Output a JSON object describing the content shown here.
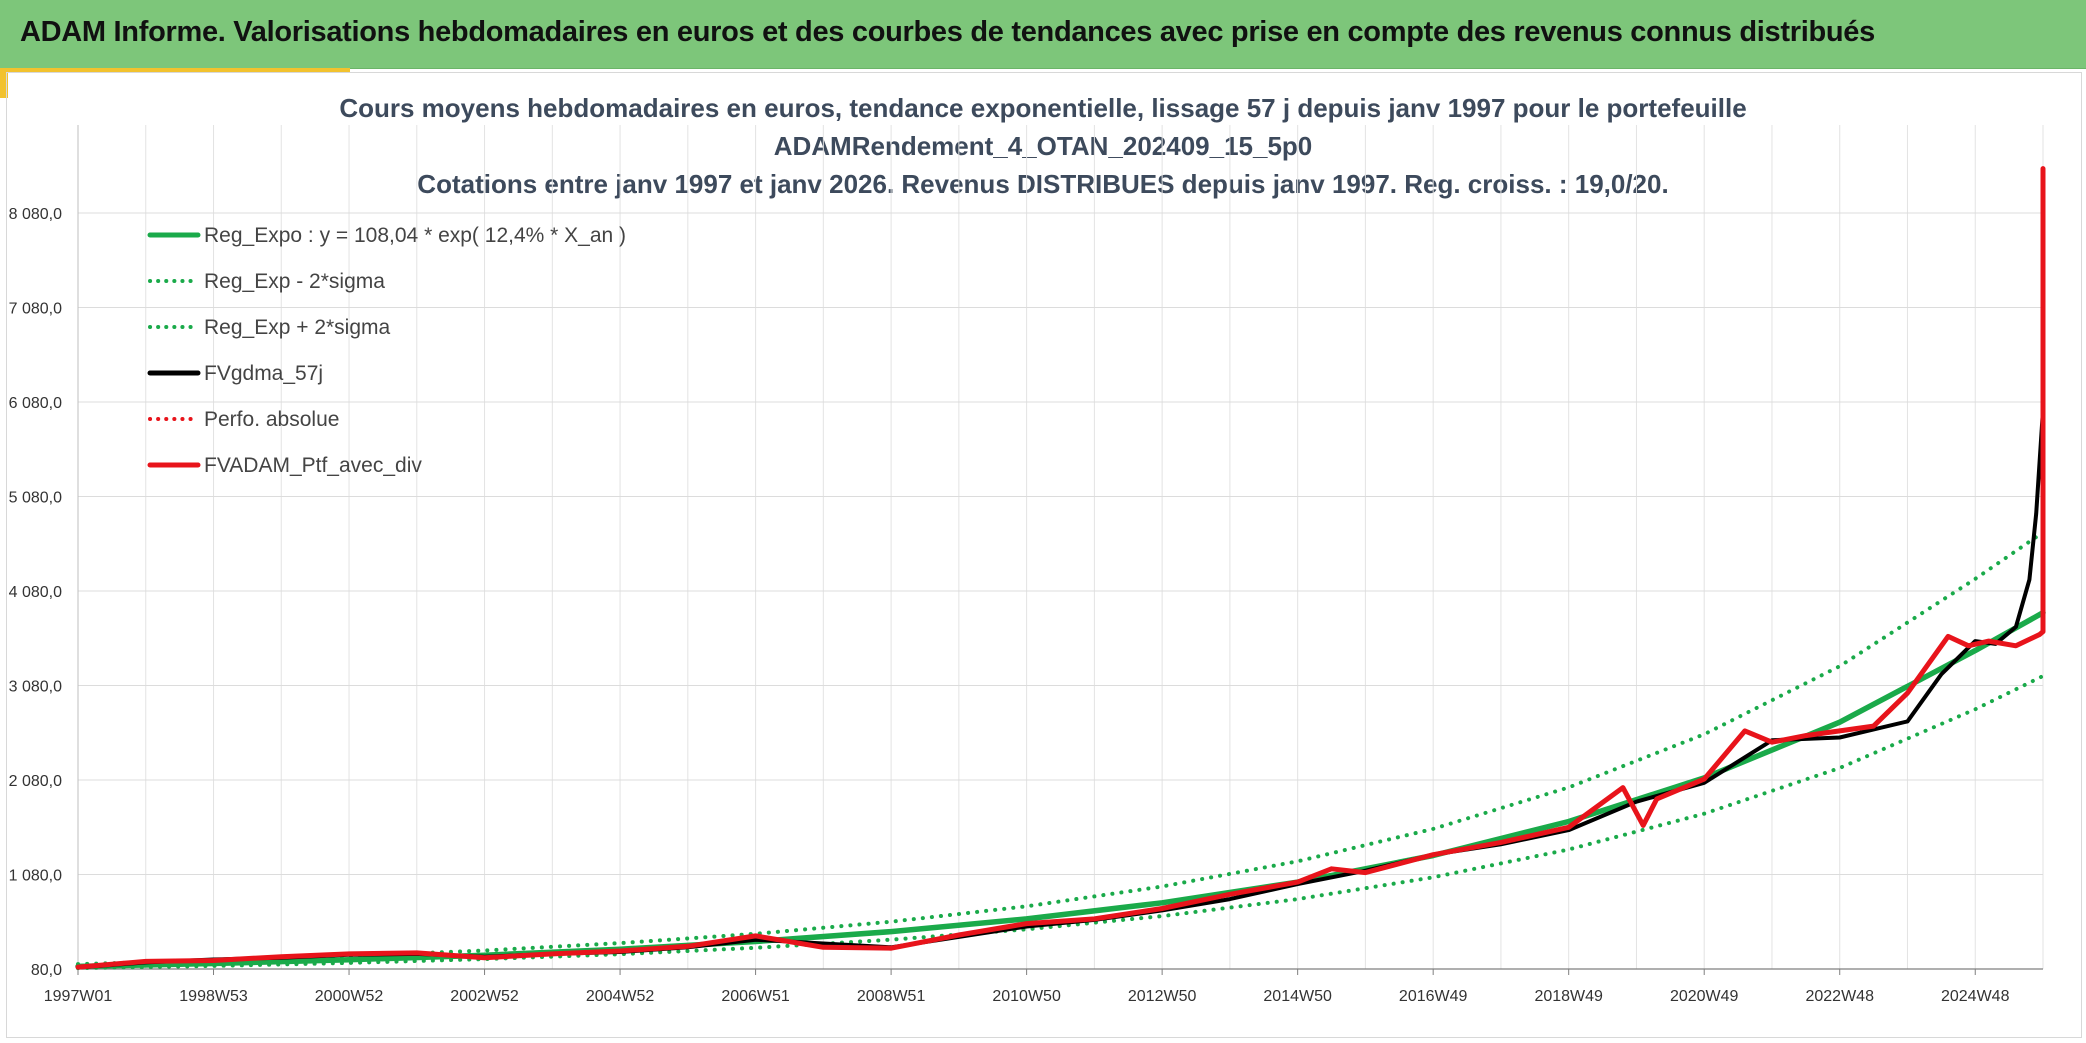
{
  "header": {
    "title": "ADAM Informe. Valorisations hebdomadaires en euros et des courbes de tendances avec prise en compte des revenus connus distribués"
  },
  "colors": {
    "header_bg": "#7dc67a",
    "regression": "#1aaa4a",
    "fvgdma": "#000000",
    "portfolio": "#e8141b",
    "perfo": "#e8141b"
  },
  "chart_data": {
    "type": "line",
    "title_lines": [
      "Cours moyens hebdomadaires en euros, tendance exponentielle, lissage 57 j depuis janv 1997 pour le portefeuille",
      "ADAMRendement_4_OTAN_202409_15_5p0",
      "Cotations entre janv 1997 et janv 2026. Revenus DISTRIBUES depuis janv 1997. Reg. croiss. : 19,0/20."
    ],
    "xlabel": "",
    "ylabel": "",
    "x_tick_labels": [
      "1997W01",
      "1998W53",
      "2000W52",
      "2002W52",
      "2004W52",
      "2006W51",
      "2008W51",
      "2010W50",
      "2012W50",
      "2014W50",
      "2016W49",
      "2018W49",
      "2020W49",
      "2022W48",
      "2024W48"
    ],
    "x_ticks_years": [
      1997.0,
      1999.0,
      2001.0,
      2003.0,
      2005.0,
      2007.0,
      2009.0,
      2011.0,
      2013.0,
      2015.0,
      2017.0,
      2019.0,
      2021.0,
      2023.0,
      2025.0
    ],
    "xlim": [
      1997.0,
      2026.0
    ],
    "y_tick_values": [
      80,
      1080,
      2080,
      3080,
      4080,
      5080,
      6080,
      7080,
      8080
    ],
    "y_tick_labels": [
      "80,0",
      "1 080,0",
      "2 080,0",
      "3 080,0",
      "4 080,0",
      "5 080,0",
      "6 080,0",
      "7 080,0",
      "8 080,0"
    ],
    "ylim": [
      80,
      9000
    ],
    "grid": true,
    "legend_position": "top-left",
    "series": [
      {
        "name": "Reg_Expo : y = 108,04 * exp( 12,4% *  X_an )",
        "style": "solid",
        "color": "#1aaa4a",
        "x": [
          1997,
          1999,
          2001,
          2003,
          2005,
          2007,
          2009,
          2011,
          2013,
          2015,
          2017,
          2019,
          2021,
          2023,
          2025,
          2026
        ],
        "values": [
          108,
          138,
          177,
          226,
          290,
          371,
          476,
          610,
          781,
          1000,
          1281,
          1641,
          2102,
          2692,
          3449,
          3850
        ]
      },
      {
        "name": "Reg_Exp - 2*sigma",
        "style": "dotted",
        "color": "#1aaa4a",
        "x": [
          1997,
          1999,
          2001,
          2003,
          2005,
          2007,
          2009,
          2011,
          2013,
          2015,
          2017,
          2019,
          2021,
          2023,
          2025,
          2026
        ],
        "values": [
          89,
          113,
          145,
          185,
          237,
          304,
          390,
          500,
          640,
          820,
          1050,
          1345,
          1723,
          2207,
          2828,
          3180
        ]
      },
      {
        "name": "Reg_Exp + 2*sigma",
        "style": "dotted",
        "color": "#1aaa4a",
        "x": [
          1997,
          1999,
          2001,
          2003,
          2005,
          2007,
          2009,
          2011,
          2013,
          2015,
          2017,
          2019,
          2021,
          2023,
          2025,
          2026
        ],
        "values": [
          132,
          169,
          216,
          276,
          354,
          453,
          581,
          744,
          953,
          1220,
          1563,
          2002,
          2564,
          3284,
          4208,
          4700
        ]
      },
      {
        "name": "FVgdma_57j",
        "style": "solid",
        "color": "#000000",
        "x": [
          1997,
          1998,
          1999,
          2000,
          2001,
          2002,
          2003,
          2004,
          2005,
          2006,
          2007,
          2008,
          2009,
          2010,
          2011,
          2012,
          2013,
          2014,
          2015,
          2016,
          2017,
          2018,
          2019,
          2020,
          2021,
          2022,
          2023,
          2024,
          2024.5,
          2025,
          2025.3,
          2025.6,
          2025.8,
          2025.9,
          2026
        ],
        "values": [
          95,
          150,
          180,
          200,
          230,
          240,
          210,
          240,
          260,
          310,
          390,
          350,
          310,
          420,
          530,
          600,
          700,
          820,
          980,
          1120,
          1290,
          1400,
          1550,
          1850,
          2050,
          2500,
          2530,
          2700,
          3200,
          3550,
          3520,
          3700,
          4200,
          4900,
          6000
        ]
      },
      {
        "name": "Perfo. absolue",
        "style": "dotted",
        "color": "#e8141b",
        "x": [
          2026
        ],
        "values": [
          3650
        ]
      },
      {
        "name": "FVADAM_Ptf_avec_div",
        "style": "solid",
        "color": "#e8141b",
        "x": [
          1997,
          1998,
          1999,
          2000,
          2001,
          2002,
          2003,
          2004,
          2005,
          2006,
          2007,
          2007.5,
          2008,
          2009,
          2010,
          2011,
          2012,
          2013,
          2014,
          2015,
          2015.5,
          2016,
          2017,
          2018,
          2019,
          2019.8,
          2020.1,
          2020.3,
          2021,
          2021.6,
          2022,
          2022.5,
          2023,
          2023.5,
          2024,
          2024.6,
          2024.9,
          2025.2,
          2025.6,
          2025.95,
          2026,
          2026,
          2026
        ],
        "values": [
          100,
          160,
          170,
          210,
          240,
          250,
          200,
          240,
          270,
          320,
          430,
          370,
          310,
          300,
          440,
          560,
          610,
          720,
          870,
          1000,
          1140,
          1100,
          1290,
          1420,
          1580,
          2000,
          1600,
          1880,
          2090,
          2600,
          2480,
          2550,
          2600,
          2650,
          3000,
          3600,
          3500,
          3550,
          3500,
          3620,
          3650,
          8550,
          3650
        ]
      }
    ]
  }
}
